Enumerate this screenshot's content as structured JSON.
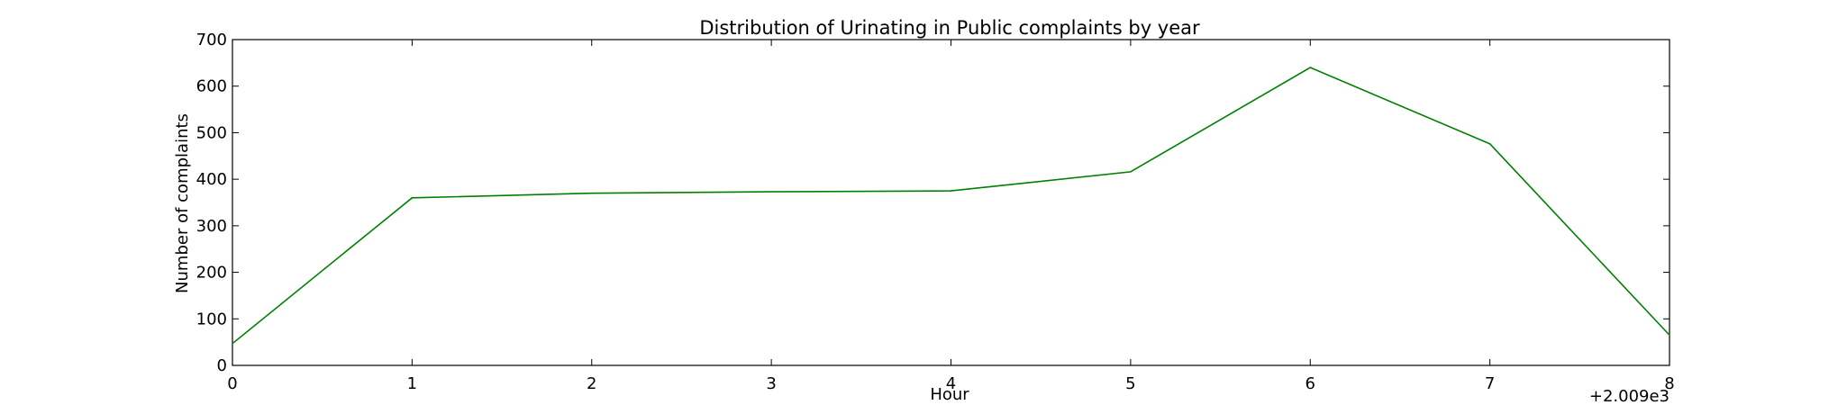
{
  "chart_data": {
    "type": "line",
    "title": "Distribution of  Urinating in Public complaints by year",
    "xlabel": "Hour",
    "ylabel": "Number of complaints",
    "x_offset_label": "+2.009e3",
    "x": [
      0,
      1,
      2,
      3,
      4,
      5,
      6,
      7,
      8
    ],
    "series": [
      {
        "color": "#008000",
        "values": [
          47,
          360,
          370,
          373,
          375,
          416,
          640,
          476,
          65
        ]
      }
    ],
    "xlim": [
      0,
      8
    ],
    "ylim": [
      0,
      700
    ],
    "xticks": [
      0,
      1,
      2,
      3,
      4,
      5,
      6,
      7,
      8
    ],
    "yticks": [
      0,
      100,
      200,
      300,
      400,
      500,
      600,
      700
    ],
    "grid": false,
    "legend": "none"
  }
}
